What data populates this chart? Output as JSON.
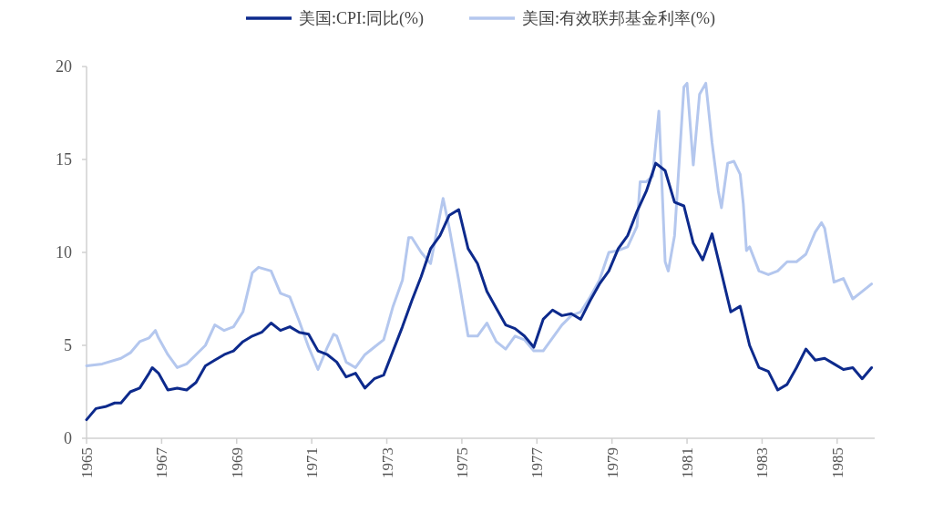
{
  "chart_data": {
    "type": "line",
    "legend": "top",
    "grid": false,
    "marker": "none",
    "line_style": "solid",
    "xlim": [
      "1965-01",
      "1986-01"
    ],
    "xticks": [
      "1965",
      "1967",
      "1969",
      "1971",
      "1973",
      "1975",
      "1977",
      "1979",
      "1981",
      "1983",
      "1985"
    ],
    "ylim": [
      0,
      20
    ],
    "yticks": [
      0,
      5,
      10,
      15,
      20
    ],
    "series": [
      {
        "name": "美国:CPI:同比(%)",
        "color": "#0d2a8c",
        "x": [
          "1965-01",
          "1965-04",
          "1965-07",
          "1965-10",
          "1965-12",
          "1966-03",
          "1966-06",
          "1966-09",
          "1966-10",
          "1966-12",
          "1967-03",
          "1967-06",
          "1967-09",
          "1967-12",
          "1968-03",
          "1968-06",
          "1968-09",
          "1968-12",
          "1969-03",
          "1969-06",
          "1969-09",
          "1969-12",
          "1970-03",
          "1970-06",
          "1970-09",
          "1970-12",
          "1971-03",
          "1971-06",
          "1971-09",
          "1971-12",
          "1972-03",
          "1972-06",
          "1972-09",
          "1972-12",
          "1973-03",
          "1973-06",
          "1973-09",
          "1973-12",
          "1974-03",
          "1974-06",
          "1974-09",
          "1974-12",
          "1975-03",
          "1975-06",
          "1975-09",
          "1975-12",
          "1976-03",
          "1976-06",
          "1976-09",
          "1976-12",
          "1977-03",
          "1977-06",
          "1977-09",
          "1977-12",
          "1978-03",
          "1978-06",
          "1978-09",
          "1978-12",
          "1979-03",
          "1979-06",
          "1979-09",
          "1979-12",
          "1980-03",
          "1980-06",
          "1980-09",
          "1980-12",
          "1981-03",
          "1981-06",
          "1981-09",
          "1981-12",
          "1982-03",
          "1982-06",
          "1982-09",
          "1982-12",
          "1983-03",
          "1983-06",
          "1983-09",
          "1983-12",
          "1984-03",
          "1984-06",
          "1984-09",
          "1984-12",
          "1985-03",
          "1985-06",
          "1985-09",
          "1985-12"
        ],
        "values": [
          1.0,
          1.6,
          1.7,
          1.9,
          1.9,
          2.5,
          2.7,
          3.5,
          3.8,
          3.5,
          2.6,
          2.7,
          2.6,
          3.0,
          3.9,
          4.2,
          4.5,
          4.7,
          5.2,
          5.5,
          5.7,
          6.2,
          5.8,
          6.0,
          5.7,
          5.6,
          4.7,
          4.5,
          4.1,
          3.3,
          3.5,
          2.7,
          3.2,
          3.4,
          4.7,
          6.0,
          7.4,
          8.7,
          10.2,
          10.9,
          12.0,
          12.3,
          10.2,
          9.4,
          7.9,
          7.0,
          6.1,
          5.9,
          5.5,
          4.9,
          6.4,
          6.9,
          6.6,
          6.7,
          6.4,
          7.4,
          8.3,
          9.0,
          10.2,
          10.9,
          12.2,
          13.3,
          14.8,
          14.4,
          12.7,
          12.5,
          10.5,
          9.6,
          11.0,
          8.9,
          6.8,
          7.1,
          5.0,
          3.8,
          3.6,
          2.6,
          2.9,
          3.8,
          4.8,
          4.2,
          4.3,
          4.0,
          3.7,
          3.8,
          3.2,
          3.8
        ]
      },
      {
        "name": "美国:有效联邦基金利率(%)",
        "color": "#b4c7ee",
        "x": [
          "1965-01",
          "1965-06",
          "1965-12",
          "1966-03",
          "1966-06",
          "1966-09",
          "1966-11",
          "1966-12",
          "1967-03",
          "1967-06",
          "1967-09",
          "1967-12",
          "1968-03",
          "1968-06",
          "1968-09",
          "1968-12",
          "1969-03",
          "1969-06",
          "1969-08",
          "1969-12",
          "1970-03",
          "1970-06",
          "1970-09",
          "1970-12",
          "1971-03",
          "1971-06",
          "1971-08",
          "1971-09",
          "1971-12",
          "1972-03",
          "1972-06",
          "1972-09",
          "1972-12",
          "1973-03",
          "1973-06",
          "1973-08",
          "1973-09",
          "1973-12",
          "1974-03",
          "1974-07",
          "1974-09",
          "1974-12",
          "1975-03",
          "1975-06",
          "1975-09",
          "1975-12",
          "1976-03",
          "1976-06",
          "1976-09",
          "1976-12",
          "1977-03",
          "1977-06",
          "1977-09",
          "1977-12",
          "1978-03",
          "1978-06",
          "1978-09",
          "1978-12",
          "1979-03",
          "1979-06",
          "1979-09",
          "1979-10",
          "1979-12",
          "1980-02",
          "1980-04",
          "1980-06",
          "1980-07",
          "1980-09",
          "1980-12",
          "1981-01",
          "1981-03",
          "1981-05",
          "1981-07",
          "1981-09",
          "1981-11",
          "1981-12",
          "1982-02",
          "1982-04",
          "1982-06",
          "1982-07",
          "1982-08",
          "1982-09",
          "1982-12",
          "1983-03",
          "1983-06",
          "1983-09",
          "1983-12",
          "1984-03",
          "1984-06",
          "1984-08",
          "1984-09",
          "1984-12",
          "1985-03",
          "1985-06",
          "1985-09",
          "1985-12"
        ],
        "values": [
          3.9,
          4.0,
          4.3,
          4.6,
          5.2,
          5.4,
          5.8,
          5.4,
          4.5,
          3.8,
          4.0,
          4.5,
          5.0,
          6.1,
          5.8,
          6.0,
          6.8,
          8.9,
          9.2,
          9.0,
          7.8,
          7.6,
          6.3,
          4.9,
          3.7,
          4.9,
          5.6,
          5.5,
          4.1,
          3.8,
          4.5,
          4.9,
          5.3,
          7.1,
          8.5,
          10.8,
          10.8,
          10.0,
          9.4,
          12.9,
          11.3,
          8.5,
          5.5,
          5.5,
          6.2,
          5.2,
          4.8,
          5.5,
          5.3,
          4.7,
          4.7,
          5.4,
          6.1,
          6.6,
          6.8,
          7.6,
          8.5,
          10.0,
          10.1,
          10.3,
          11.4,
          13.8,
          13.8,
          14.1,
          17.6,
          9.5,
          9.0,
          10.9,
          18.9,
          19.1,
          14.7,
          18.5,
          19.1,
          15.9,
          13.3,
          12.4,
          14.8,
          14.9,
          14.2,
          12.6,
          10.1,
          10.3,
          9.0,
          8.8,
          9.0,
          9.5,
          9.5,
          9.9,
          11.1,
          11.6,
          11.3,
          8.4,
          8.6,
          7.5,
          7.9,
          8.3
        ]
      }
    ]
  }
}
